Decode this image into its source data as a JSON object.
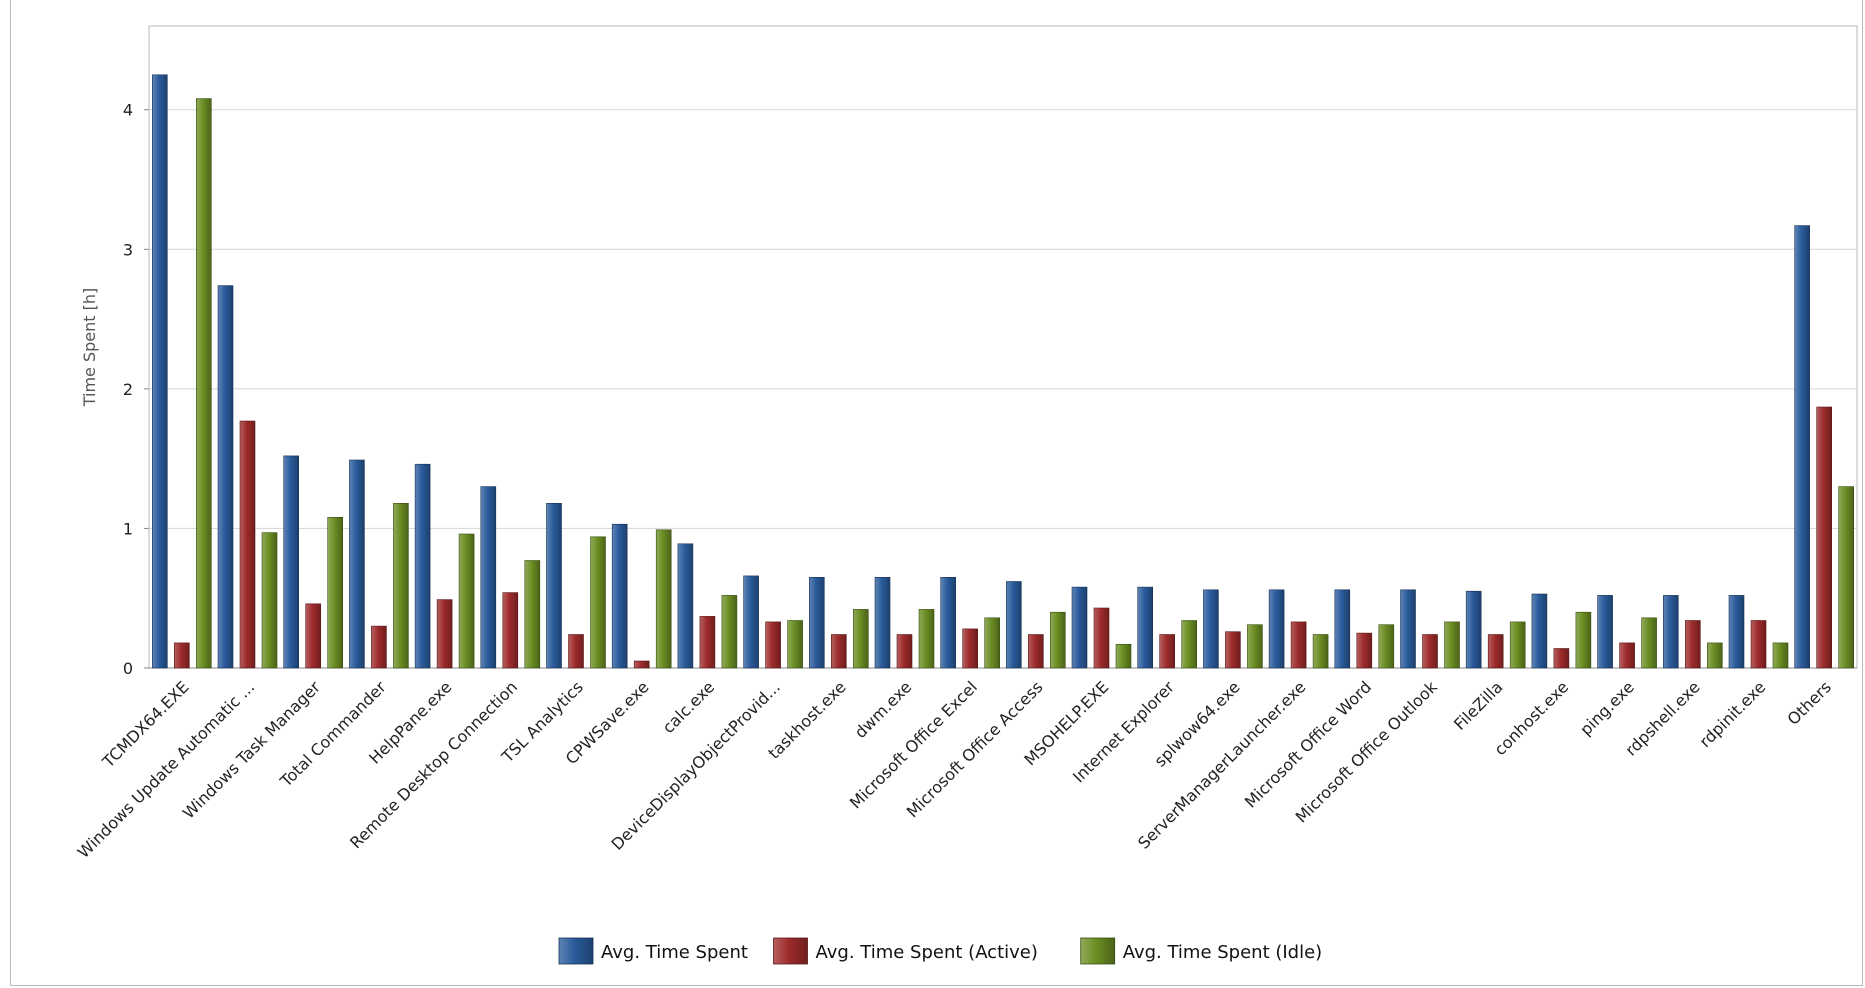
{
  "chart_data": {
    "type": "bar",
    "title": "",
    "xlabel": "",
    "ylabel": "Time Spent [h]",
    "ylim": [
      0,
      4.6
    ],
    "yticks": [
      0,
      1,
      2,
      3,
      4
    ],
    "grid": true,
    "legend_position": "bottom-center",
    "categories": [
      "TCMDX64.EXE",
      "Windows Update Automatic ...",
      "Windows Task Manager",
      "Total Commander",
      "HelpPane.exe",
      "Remote Desktop Connection",
      "TSL Analytics",
      "CPWSave.exe",
      "calc.exe",
      "DeviceDisplayObjectProvid...",
      "taskhost.exe",
      "dwm.exe",
      "Microsoft Office Excel",
      "Microsoft Office Access",
      "MSOHELP.EXE",
      "Internet Explorer",
      "splwow64.exe",
      "ServerManagerLauncher.exe",
      "Microsoft Office Word",
      "Microsoft Office Outlook",
      "FileZilla",
      "conhost.exe",
      "ping.exe",
      "rdpshell.exe",
      "rdpinit.exe",
      "Others"
    ],
    "series": [
      {
        "name": "Avg. Time Spent",
        "color": "#2a5b9c",
        "values": [
          4.25,
          2.74,
          1.52,
          1.49,
          1.46,
          1.3,
          1.18,
          1.03,
          0.89,
          0.66,
          0.65,
          0.65,
          0.65,
          0.62,
          0.58,
          0.58,
          0.56,
          0.56,
          0.56,
          0.56,
          0.55,
          0.53,
          0.52,
          0.52,
          0.52,
          3.17
        ]
      },
      {
        "name": "Avg. Time Spent (Active)",
        "color": "#9e2b2b",
        "values": [
          0.18,
          1.77,
          0.46,
          0.3,
          0.49,
          0.54,
          0.24,
          0.05,
          0.37,
          0.33,
          0.24,
          0.24,
          0.28,
          0.24,
          0.43,
          0.24,
          0.26,
          0.33,
          0.25,
          0.24,
          0.24,
          0.14,
          0.18,
          0.34,
          0.34,
          1.87
        ]
      },
      {
        "name": "Avg. Time Spent (Idle)",
        "color": "#6b8e23",
        "values": [
          4.08,
          0.97,
          1.08,
          1.18,
          0.96,
          0.77,
          0.94,
          0.99,
          0.52,
          0.34,
          0.42,
          0.42,
          0.36,
          0.4,
          0.17,
          0.34,
          0.31,
          0.24,
          0.31,
          0.33,
          0.33,
          0.4,
          0.36,
          0.18,
          0.18,
          1.3
        ]
      }
    ]
  }
}
